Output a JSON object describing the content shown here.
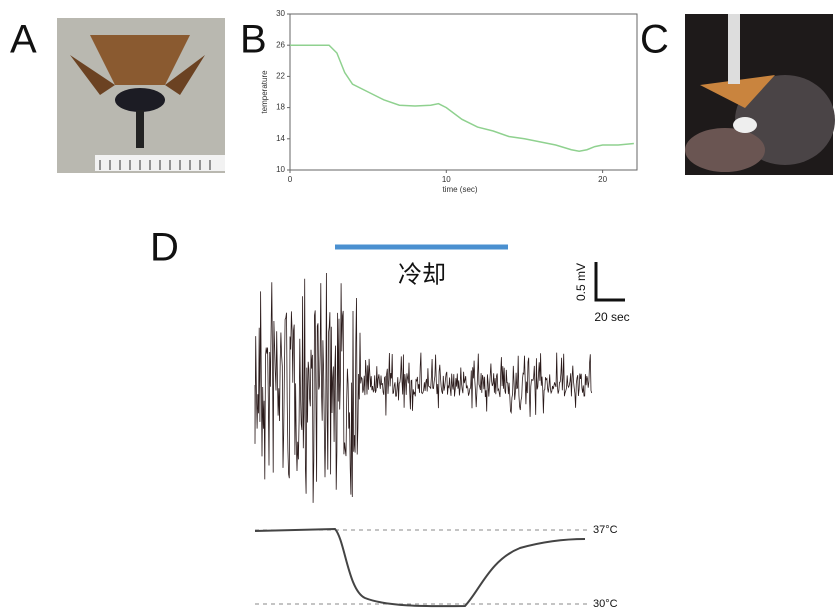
{
  "panel_labels": [
    "A",
    "B",
    "C",
    "D"
  ],
  "chart_data": {
    "type": "line",
    "x_label": "time (sec)",
    "y_label": "temperature",
    "x": [
      0,
      2.5,
      3,
      3.5,
      4,
      5,
      6,
      7,
      8,
      9,
      9.5,
      10,
      11,
      12,
      13,
      14,
      15,
      16,
      17,
      18,
      18.5,
      19,
      19.5,
      20,
      21,
      22
    ],
    "series": [
      {
        "name": "temperature",
        "color": "#8fd18f",
        "values": [
          26,
          26,
          25,
          22.5,
          21,
          20,
          19,
          18.3,
          18.2,
          18.3,
          18.5,
          18,
          16.5,
          15.5,
          15,
          14.3,
          14,
          13.6,
          13.2,
          12.6,
          12.4,
          12.6,
          13,
          13.2,
          13.2,
          13.4
        ]
      }
    ],
    "xlim": [
      0,
      22.2
    ],
    "ylim": [
      10,
      30
    ],
    "xticks": [
      0,
      10,
      20
    ],
    "yticks": [
      10,
      14,
      18,
      22,
      26,
      30
    ]
  },
  "panel_d": {
    "cooling_label": "冷却",
    "scale_voltage": "0.5 mV",
    "scale_time": "20 sec",
    "temp_high": "37°C",
    "temp_low": "30°C"
  }
}
